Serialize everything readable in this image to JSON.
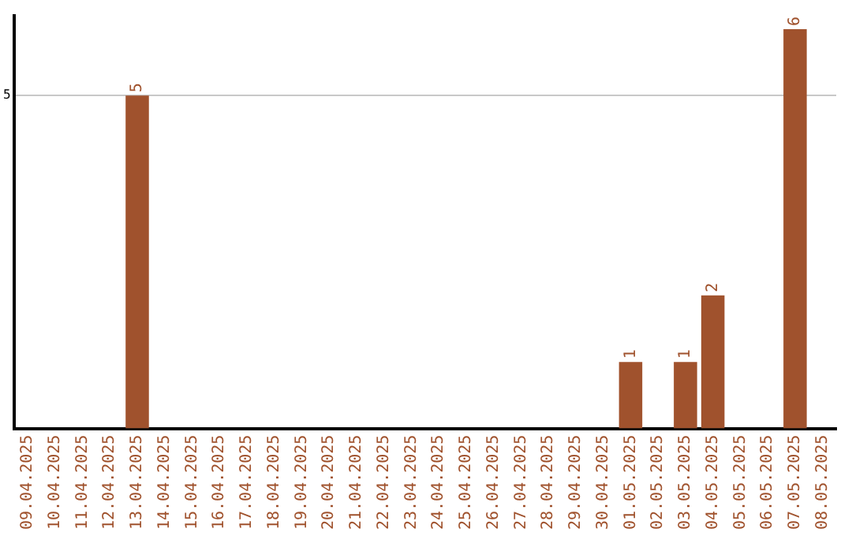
{
  "chart_data": {
    "type": "bar",
    "categories": [
      "09.04.2025",
      "10.04.2025",
      "11.04.2025",
      "12.04.2025",
      "13.04.2025",
      "14.04.2025",
      "15.04.2025",
      "16.04.2025",
      "17.04.2025",
      "18.04.2025",
      "19.04.2025",
      "20.04.2025",
      "21.04.2025",
      "22.04.2025",
      "23.04.2025",
      "24.04.2025",
      "25.04.2025",
      "26.04.2025",
      "27.04.2025",
      "28.04.2025",
      "29.04.2025",
      "30.04.2025",
      "01.05.2025",
      "02.05.2025",
      "03.05.2025",
      "04.05.2025",
      "05.05.2025",
      "06.05.2025",
      "07.05.2025",
      "08.05.2025"
    ],
    "values": [
      0,
      0,
      0,
      0,
      5,
      0,
      0,
      0,
      0,
      0,
      0,
      0,
      0,
      0,
      0,
      0,
      0,
      0,
      0,
      0,
      0,
      0,
      1,
      0,
      1,
      2,
      0,
      0,
      6,
      0
    ],
    "value_labels": [
      null,
      null,
      null,
      null,
      "5",
      null,
      null,
      null,
      null,
      null,
      null,
      null,
      null,
      null,
      null,
      null,
      null,
      null,
      null,
      null,
      null,
      null,
      "1",
      null,
      "1",
      "2",
      null,
      null,
      "6",
      null
    ],
    "color": "#a0522d",
    "ylim": [
      0,
      6.2
    ],
    "yticks": [
      5
    ],
    "grid": "y",
    "legend": false
  }
}
